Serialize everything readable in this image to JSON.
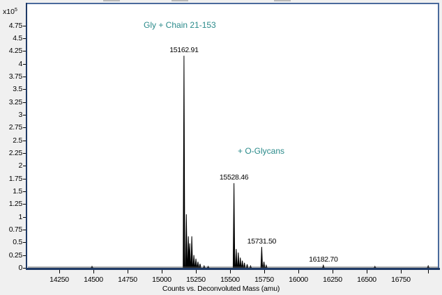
{
  "chart_data": {
    "type": "line",
    "title": "",
    "xlabel": "Counts vs. Deconvoluted Mass (amu)",
    "ylabel": "",
    "y_multiplier": "x10",
    "y_exponent": "5",
    "xlim": [
      14010,
      17030
    ],
    "ylim": [
      0,
      4.85
    ],
    "grid": false,
    "x_ticks": [
      "14250",
      "14500",
      "14750",
      "15000",
      "15250",
      "15500",
      "15750",
      "16000",
      "16250",
      "16500",
      "16750"
    ],
    "y_ticks": [
      "0",
      "0.25",
      "0.5",
      "0.75",
      "1",
      "1.25",
      "1.5",
      "1.75",
      "2",
      "2.25",
      "2.5",
      "2.75",
      "3",
      "3.25",
      "3.5",
      "3.75",
      "4",
      "4.25",
      "4.5",
      "4.75"
    ],
    "peaks": [
      {
        "mass": 15162.91,
        "label": "15162.91",
        "intensity": 4.16
      },
      {
        "mass": 15528.46,
        "label": "15528.46",
        "intensity": 1.66
      },
      {
        "mass": 15731.5,
        "label": "15731.50",
        "intensity": 0.41
      },
      {
        "mass": 16182.7,
        "label": "16182.70",
        "intensity": 0.05
      }
    ],
    "minor_peaks": [
      {
        "mass": 15180,
        "intensity": 1.05
      },
      {
        "mass": 15195,
        "intensity": 0.62
      },
      {
        "mass": 15205,
        "intensity": 0.48
      },
      {
        "mass": 15220,
        "intensity": 0.62
      },
      {
        "mass": 15235,
        "intensity": 0.25
      },
      {
        "mass": 15250,
        "intensity": 0.18
      },
      {
        "mass": 15265,
        "intensity": 0.12
      },
      {
        "mass": 15280,
        "intensity": 0.08
      },
      {
        "mass": 15310,
        "intensity": 0.04
      },
      {
        "mass": 15340,
        "intensity": 0.03
      },
      {
        "mass": 15545,
        "intensity": 0.37
      },
      {
        "mass": 15560,
        "intensity": 0.3
      },
      {
        "mass": 15575,
        "intensity": 0.2
      },
      {
        "mass": 15590,
        "intensity": 0.14
      },
      {
        "mass": 15605,
        "intensity": 0.1
      },
      {
        "mass": 15625,
        "intensity": 0.07
      },
      {
        "mass": 15650,
        "intensity": 0.04
      },
      {
        "mass": 15748,
        "intensity": 0.12
      },
      {
        "mass": 15765,
        "intensity": 0.05
      },
      {
        "mass": 14490,
        "intensity": 0.03
      },
      {
        "mass": 16560,
        "intensity": 0.03
      },
      {
        "mass": 16950,
        "intensity": 0.04
      }
    ],
    "annotations": [
      {
        "text": "Gly + Chain 21-153",
        "color": "#2a8a8a"
      },
      {
        "text": "+ O-Glycans",
        "color": "#2a8a8a"
      }
    ]
  }
}
